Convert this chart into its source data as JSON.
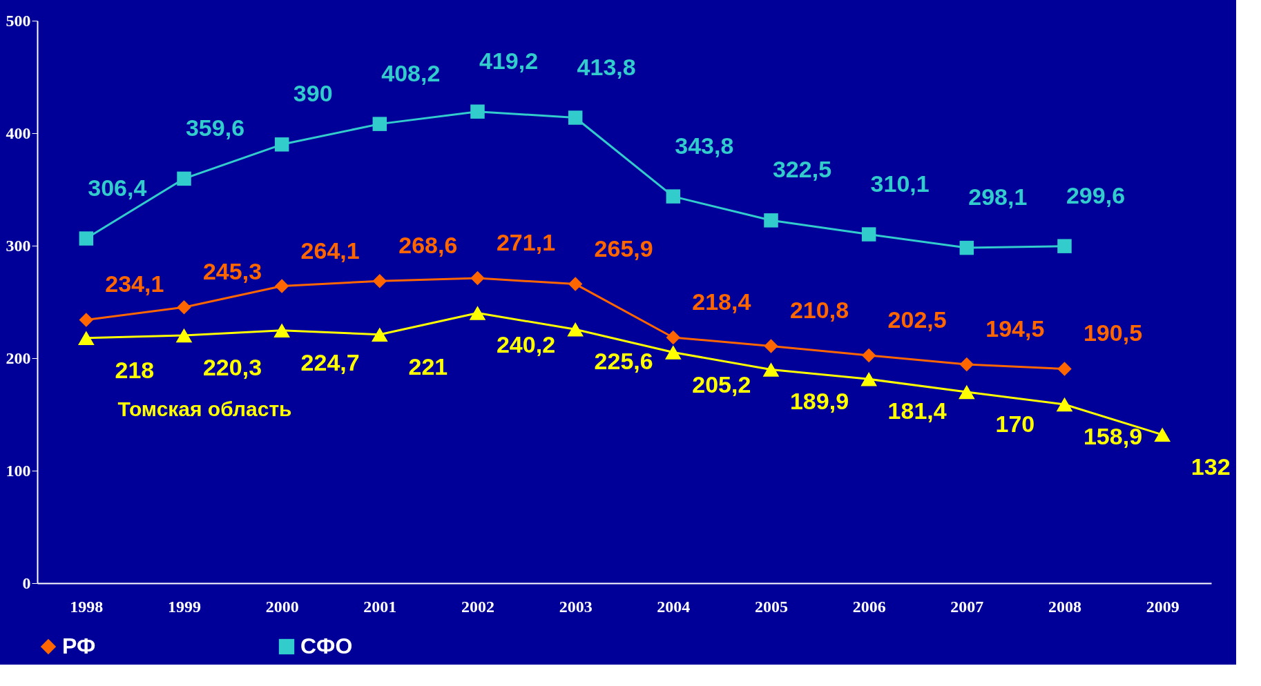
{
  "chart_data": {
    "type": "line",
    "categories": [
      "1998",
      "1999",
      "2000",
      "2001",
      "2002",
      "2003",
      "2004",
      "2005",
      "2006",
      "2007",
      "2008",
      "2009"
    ],
    "series": [
      {
        "name": "РФ",
        "color": "#ff6600",
        "marker": "diamond",
        "values": [
          234.1,
          245.3,
          264.1,
          268.6,
          271.1,
          265.9,
          218.4,
          210.8,
          202.5,
          194.5,
          190.5,
          null
        ],
        "value_labels": [
          "234,1",
          "245,3",
          "264,1",
          "268,6",
          "271,1",
          "265,9",
          "218,4",
          "210,8",
          "202,5",
          "194,5",
          "190,5",
          null
        ]
      },
      {
        "name": "СФО",
        "color": "#33cccc",
        "marker": "square",
        "values": [
          306.4,
          359.6,
          390,
          408.2,
          419.2,
          413.8,
          343.8,
          322.5,
          310.1,
          298.1,
          299.6,
          null
        ],
        "value_labels": [
          "306,4",
          "359,6",
          "390",
          "408,2",
          "419,2",
          "413,8",
          "343,8",
          "322,5",
          "310,1",
          "298,1",
          "299,6",
          null
        ]
      },
      {
        "name": "Томская область",
        "color": "#ffff00",
        "marker": "triangle",
        "values": [
          218,
          220.3,
          224.7,
          221,
          240.2,
          225.6,
          205.2,
          189.9,
          181.4,
          170,
          158.9,
          132
        ],
        "value_labels": [
          "218",
          "220,3",
          "224,7",
          "221",
          "240,2",
          "225,6",
          "205,2",
          "189,9",
          "181,4",
          "170",
          "158,9",
          "132"
        ]
      }
    ],
    "ylim": [
      0,
      500
    ],
    "yticks": [
      0,
      100,
      200,
      300,
      400,
      500
    ],
    "grid": false,
    "legend": "bottom",
    "line_style": "solid"
  }
}
